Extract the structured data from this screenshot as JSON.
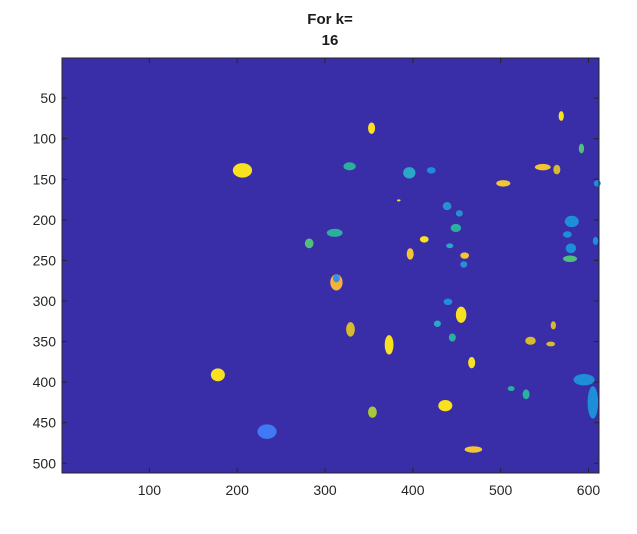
{
  "chart_data": {
    "type": "heatmap",
    "title_lines": [
      "For k=",
      "16"
    ],
    "xlabel": "",
    "ylabel": "",
    "xlim": [
      0.5,
      612
    ],
    "ylim": [
      0.5,
      512
    ],
    "y_reversed": true,
    "x_ticks": [
      100,
      200,
      300,
      400,
      500,
      600
    ],
    "y_ticks": [
      50,
      100,
      150,
      200,
      250,
      300,
      350,
      400,
      450,
      500
    ],
    "grid": false,
    "background_label_color": "#3a2da8",
    "colormap": "parula",
    "blobs": [
      {
        "cx": 206,
        "cy": 139,
        "rx": 11,
        "ry": 9,
        "color": "#f8e11f"
      },
      {
        "cx": 178,
        "cy": 391,
        "rx": 8,
        "ry": 8,
        "color": "#f8e11f"
      },
      {
        "cx": 234,
        "cy": 461,
        "rx": 11,
        "ry": 9,
        "color": "#3f7af4"
      },
      {
        "cx": 353,
        "cy": 87,
        "rx": 4,
        "ry": 7,
        "color": "#f8e11f"
      },
      {
        "cx": 328,
        "cy": 134,
        "rx": 7,
        "ry": 5,
        "color": "#2ab09d"
      },
      {
        "cx": 313,
        "cy": 277,
        "rx": 7,
        "ry": 10,
        "color": "#f5b23b"
      },
      {
        "cx": 313,
        "cy": 272,
        "rx": 4,
        "ry": 5,
        "color": "#3a8ee6"
      },
      {
        "cx": 329,
        "cy": 335,
        "rx": 5,
        "ry": 9,
        "color": "#d8ba2f"
      },
      {
        "cx": 373,
        "cy": 354,
        "rx": 5,
        "ry": 12,
        "color": "#f8e11f"
      },
      {
        "cx": 354,
        "cy": 437,
        "rx": 5,
        "ry": 7,
        "color": "#aac63a"
      },
      {
        "cx": 282,
        "cy": 229,
        "rx": 5,
        "ry": 6,
        "color": "#4ec07c"
      },
      {
        "cx": 311,
        "cy": 216,
        "rx": 9,
        "ry": 5,
        "color": "#2ab09d"
      },
      {
        "cx": 396,
        "cy": 142,
        "rx": 7,
        "ry": 7,
        "color": "#2aa7c7"
      },
      {
        "cx": 421,
        "cy": 139,
        "rx": 5,
        "ry": 4,
        "color": "#1f8ed9"
      },
      {
        "cx": 397,
        "cy": 242,
        "rx": 4,
        "ry": 7,
        "color": "#f2c533"
      },
      {
        "cx": 413,
        "cy": 224,
        "rx": 5,
        "ry": 4,
        "color": "#f8e11f"
      },
      {
        "cx": 439,
        "cy": 183,
        "rx": 5,
        "ry": 5,
        "color": "#2a8fd0"
      },
      {
        "cx": 453,
        "cy": 192,
        "rx": 4,
        "ry": 4,
        "color": "#2a8fd0"
      },
      {
        "cx": 449,
        "cy": 210,
        "rx": 6,
        "ry": 5,
        "color": "#2ab09d"
      },
      {
        "cx": 442,
        "cy": 232,
        "rx": 4,
        "ry": 3,
        "color": "#2aa7c7"
      },
      {
        "cx": 459,
        "cy": 244,
        "rx": 5,
        "ry": 4,
        "color": "#f2c533"
      },
      {
        "cx": 458,
        "cy": 255,
        "rx": 4,
        "ry": 4,
        "color": "#2a8fd0"
      },
      {
        "cx": 440,
        "cy": 301,
        "rx": 5,
        "ry": 4,
        "color": "#1f8ed9"
      },
      {
        "cx": 455,
        "cy": 317,
        "rx": 6,
        "ry": 10,
        "color": "#f8e11f"
      },
      {
        "cx": 428,
        "cy": 328,
        "rx": 4,
        "ry": 4,
        "color": "#2aa7c7"
      },
      {
        "cx": 445,
        "cy": 345,
        "rx": 4,
        "ry": 5,
        "color": "#2ab09d"
      },
      {
        "cx": 467,
        "cy": 376,
        "rx": 4,
        "ry": 7,
        "color": "#f8e11f"
      },
      {
        "cx": 437,
        "cy": 429,
        "rx": 8,
        "ry": 7,
        "color": "#f8e11f"
      },
      {
        "cx": 469,
        "cy": 483,
        "rx": 10,
        "ry": 4,
        "color": "#f2c533"
      },
      {
        "cx": 503,
        "cy": 155,
        "rx": 8,
        "ry": 4,
        "color": "#f2c533"
      },
      {
        "cx": 512,
        "cy": 408,
        "rx": 4,
        "ry": 3,
        "color": "#2ab09d"
      },
      {
        "cx": 529,
        "cy": 415,
        "rx": 4,
        "ry": 6,
        "color": "#2ab09d"
      },
      {
        "cx": 534,
        "cy": 349,
        "rx": 6,
        "ry": 5,
        "color": "#d8ba2f"
      },
      {
        "cx": 548,
        "cy": 135,
        "rx": 9,
        "ry": 4,
        "color": "#f2c533"
      },
      {
        "cx": 569,
        "cy": 72,
        "rx": 3,
        "ry": 6,
        "color": "#f8e11f"
      },
      {
        "cx": 564,
        "cy": 138,
        "rx": 4,
        "ry": 6,
        "color": "#d8ba2f"
      },
      {
        "cx": 592,
        "cy": 112,
        "rx": 3,
        "ry": 6,
        "color": "#4ec07c"
      },
      {
        "cx": 581,
        "cy": 202,
        "rx": 8,
        "ry": 7,
        "color": "#1f8ed9"
      },
      {
        "cx": 576,
        "cy": 218,
        "rx": 5,
        "ry": 4,
        "color": "#1f8ed9"
      },
      {
        "cx": 580,
        "cy": 235,
        "rx": 6,
        "ry": 6,
        "color": "#1f8ed9"
      },
      {
        "cx": 579,
        "cy": 248,
        "rx": 8,
        "ry": 4,
        "color": "#4ec07c"
      },
      {
        "cx": 610,
        "cy": 155,
        "rx": 4,
        "ry": 4,
        "color": "#1f8ed9"
      },
      {
        "cx": 608,
        "cy": 226,
        "rx": 3,
        "ry": 5,
        "color": "#1f8ed9"
      },
      {
        "cx": 560,
        "cy": 330,
        "rx": 3,
        "ry": 5,
        "color": "#d8ba2f"
      },
      {
        "cx": 557,
        "cy": 353,
        "rx": 5,
        "ry": 3,
        "color": "#d8ba2f"
      },
      {
        "cx": 595,
        "cy": 397,
        "rx": 12,
        "ry": 7,
        "color": "#1f8ed9"
      },
      {
        "cx": 605,
        "cy": 425,
        "rx": 6,
        "ry": 20,
        "color": "#1f8ed9"
      },
      {
        "cx": 384,
        "cy": 176,
        "rx": 2,
        "ry": 1,
        "color": "#f8e11f"
      }
    ]
  }
}
